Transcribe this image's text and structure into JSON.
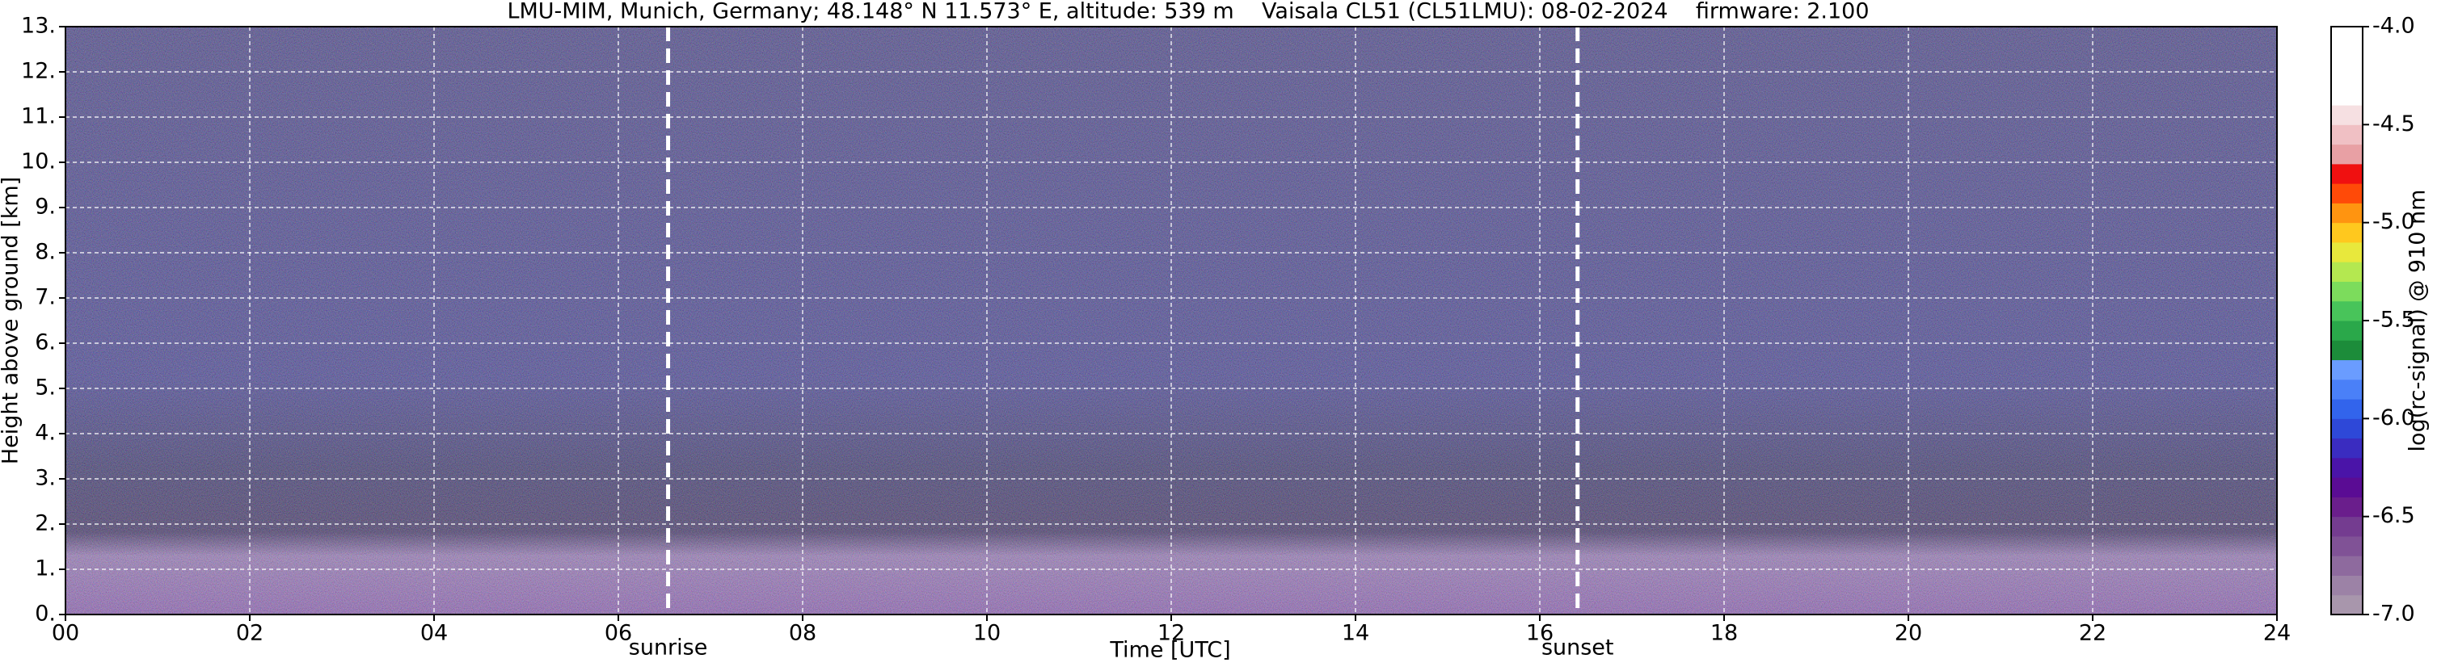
{
  "chart_data": {
    "type": "heatmap",
    "title": "LMU-MIM, Munich, Germany; 48.148° N 11.573° E, altitude: 539 m    Vaisala CL51 (CL51LMU): 08-02-2024    firmware: 2.100",
    "x_label": "Time [UTC]",
    "y_label": "Height above ground [km]",
    "colorbar_label": "log(rc-signal) @ 910 nm",
    "xlim": [
      0,
      24
    ],
    "xticks": [
      {
        "value": 0,
        "label": "00"
      },
      {
        "value": 2,
        "label": "02"
      },
      {
        "value": 4,
        "label": "04"
      },
      {
        "value": 6,
        "label": "06"
      },
      {
        "value": 8,
        "label": "08"
      },
      {
        "value": 10,
        "label": "10"
      },
      {
        "value": 12,
        "label": "12"
      },
      {
        "value": 14,
        "label": "14"
      },
      {
        "value": 16,
        "label": "16"
      },
      {
        "value": 18,
        "label": "18"
      },
      {
        "value": 20,
        "label": "20"
      },
      {
        "value": 22,
        "label": "22"
      },
      {
        "value": 24,
        "label": "24"
      }
    ],
    "ylim": [
      0,
      13
    ],
    "yticks": [
      {
        "value": 0,
        "label": "0."
      },
      {
        "value": 1,
        "label": "1."
      },
      {
        "value": 2,
        "label": "2."
      },
      {
        "value": 3,
        "label": "3."
      },
      {
        "value": 4,
        "label": "4."
      },
      {
        "value": 5,
        "label": "5."
      },
      {
        "value": 6,
        "label": "6."
      },
      {
        "value": 7,
        "label": "7."
      },
      {
        "value": 8,
        "label": "8."
      },
      {
        "value": 9,
        "label": "9."
      },
      {
        "value": 10,
        "label": "10."
      },
      {
        "value": 11,
        "label": "11."
      },
      {
        "value": 12,
        "label": "12."
      },
      {
        "value": 13,
        "label": "13."
      }
    ],
    "grid": true,
    "clim": [
      -7,
      -4
    ],
    "cticks": [
      {
        "value": -7,
        "label": "-7.0"
      },
      -6.5,
      {
        "value": -6,
        "label": "-6.0"
      },
      -5.5,
      {
        "value": -5,
        "label": "-5.0"
      },
      -4.5,
      {
        "value": -4,
        "label": "-4.0"
      }
    ],
    "colormap": [
      "#a896ac",
      "#9c82a6",
      "#8e6a9e",
      "#805296",
      "#743c90",
      "#6a1e8c",
      "#5a0c94",
      "#4a14a8",
      "#3a2cc0",
      "#2e48d8",
      "#3264ec",
      "#4a80f8",
      "#6a9cff",
      "#1c8c3a",
      "#2aa84a",
      "#48c45a",
      "#7cdc5c",
      "#b4e850",
      "#e8e83c",
      "#ffc81e",
      "#ff9410",
      "#ff4a08",
      "#f01010",
      "#e8a0a4",
      "#f0c0c4",
      "#f6e0e2",
      "#ffffff",
      "#ffffff",
      "#ffffff",
      "#ffffff"
    ],
    "markers": [
      {
        "x": 6.54,
        "label": "sunrise"
      },
      {
        "x": 16.41,
        "label": "sunset"
      }
    ]
  }
}
